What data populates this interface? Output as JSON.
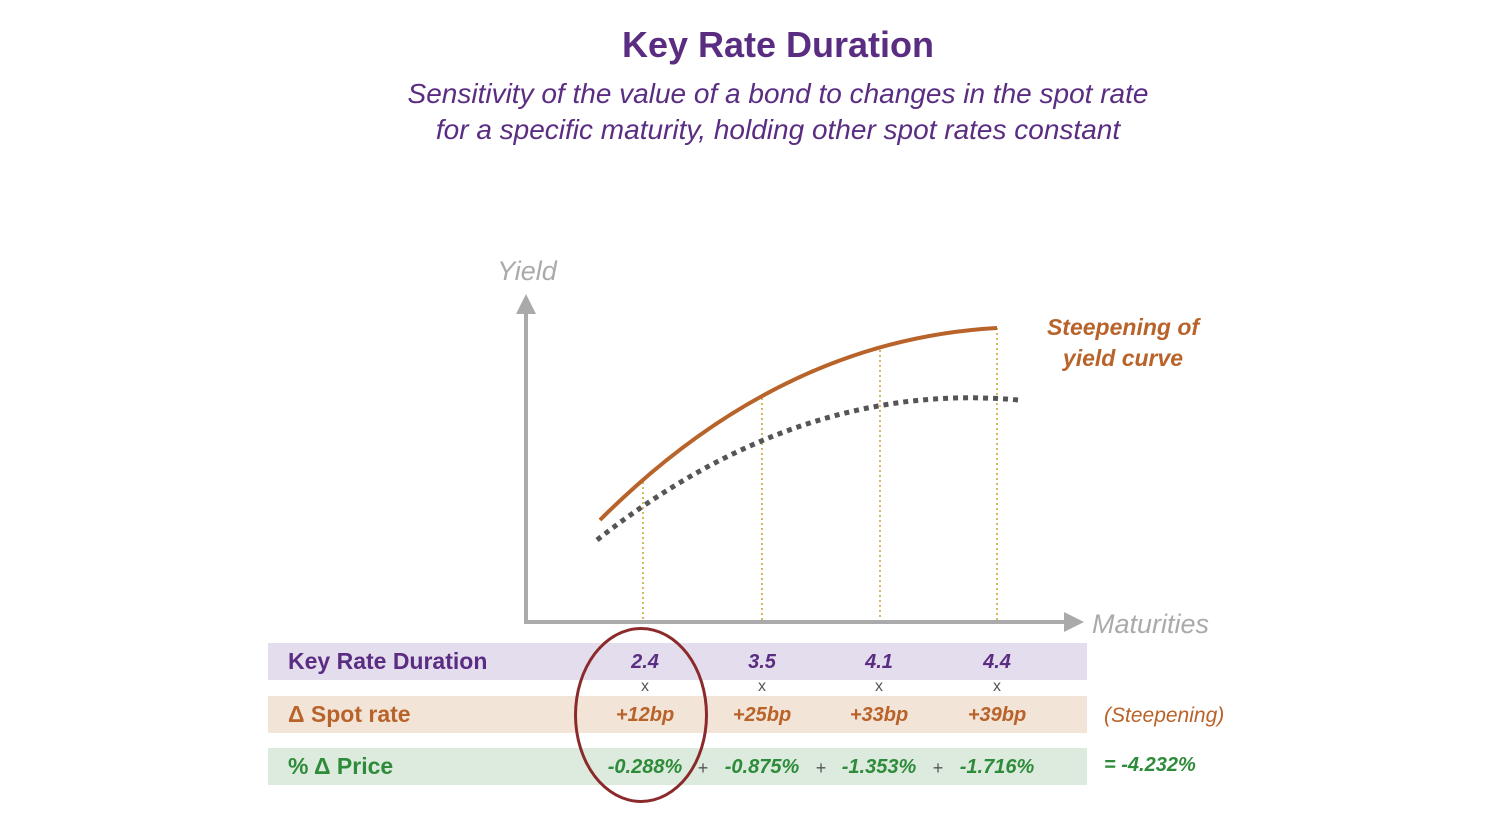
{
  "title": "Key Rate Duration",
  "subtitle_line1": "Sensitivity of the value of a bond to changes in the spot rate",
  "subtitle_line2": "for a specific maturity, holding other spot rates constant",
  "colors": {
    "purple": "#5a2d82",
    "orange": "#b8632a",
    "green": "#2e8b3a",
    "axis_gray": "#aaaaaa",
    "circle_red": "#8a2a2a"
  },
  "chart": {
    "y_axis_label": "Yield",
    "x_axis_label": "Maturities",
    "curve_label_line1": "Steepening of",
    "curve_label_line2": "yield curve",
    "series": [
      {
        "style": "solid",
        "color": "#b8632a"
      },
      {
        "style": "dotted",
        "color": "#555555"
      }
    ]
  },
  "table": {
    "rows": [
      {
        "label": "Key Rate Duration",
        "values": [
          "2.4",
          "3.5",
          "4.1",
          "4.4"
        ]
      },
      {
        "label": "Δ Spot rate",
        "values": [
          "+12bp",
          "+25bp",
          "+33bp",
          "+39bp"
        ],
        "note": "(Steepening)"
      },
      {
        "label": "% Δ Price",
        "values": [
          "-0.288%",
          "-0.875%",
          "-1.353%",
          "-1.716%"
        ],
        "total": "= -4.232%"
      }
    ],
    "multiply_symbol": "x",
    "plus_symbol": "+",
    "highlighted_column": 0
  }
}
